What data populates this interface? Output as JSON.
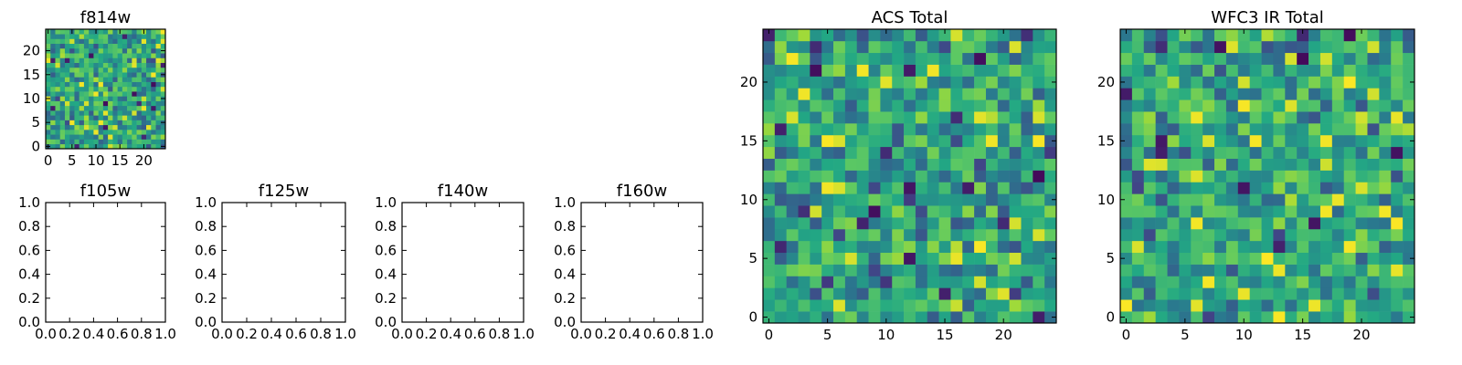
{
  "colors": {
    "background": "#ffffff",
    "axes": "#000000",
    "colormap": "viridis"
  },
  "chart_data": [
    {
      "type": "heatmap",
      "title": "f814w",
      "shape": [
        25,
        25
      ],
      "xlim": [
        -0.5,
        24.5
      ],
      "ylim": [
        -0.5,
        24.5
      ],
      "xticks": [
        0,
        5,
        10,
        15,
        20
      ],
      "xticklabels": [
        "0",
        "5",
        "10",
        "15",
        "20"
      ],
      "yticks": [
        0,
        5,
        10,
        15,
        20
      ],
      "yticklabels": [
        "0",
        "5",
        "10",
        "15",
        "20"
      ],
      "seed": 814
    },
    {
      "type": "heatmap",
      "title": "f105w",
      "empty": true,
      "xlim": [
        0,
        1
      ],
      "ylim": [
        0,
        1
      ],
      "xticks": [
        0,
        0.2,
        0.4,
        0.6,
        0.8,
        1.0
      ],
      "xticklabels": [
        "0.0",
        "0.2",
        "0.4",
        "0.6",
        "0.8",
        "1.0"
      ],
      "yticks": [
        0,
        0.2,
        0.4,
        0.6,
        0.8,
        1.0
      ],
      "yticklabels": [
        "0.0",
        "0.2",
        "0.4",
        "0.6",
        "0.8",
        "1.0"
      ]
    },
    {
      "type": "heatmap",
      "title": "f125w",
      "empty": true,
      "xlim": [
        0,
        1
      ],
      "ylim": [
        0,
        1
      ],
      "xticks": [
        0,
        0.2,
        0.4,
        0.6,
        0.8,
        1.0
      ],
      "xticklabels": [
        "0.0",
        "0.2",
        "0.4",
        "0.6",
        "0.8",
        "1.0"
      ],
      "yticks": [
        0,
        0.2,
        0.4,
        0.6,
        0.8,
        1.0
      ],
      "yticklabels": [
        "0.0",
        "0.2",
        "0.4",
        "0.6",
        "0.8",
        "1.0"
      ]
    },
    {
      "type": "heatmap",
      "title": "f140w",
      "empty": true,
      "xlim": [
        0,
        1
      ],
      "ylim": [
        0,
        1
      ],
      "xticks": [
        0,
        0.2,
        0.4,
        0.6,
        0.8,
        1.0
      ],
      "xticklabels": [
        "0.0",
        "0.2",
        "0.4",
        "0.6",
        "0.8",
        "1.0"
      ],
      "yticks": [
        0,
        0.2,
        0.4,
        0.6,
        0.8,
        1.0
      ],
      "yticklabels": [
        "0.0",
        "0.2",
        "0.4",
        "0.6",
        "0.8",
        "1.0"
      ]
    },
    {
      "type": "heatmap",
      "title": "f160w",
      "empty": true,
      "xlim": [
        0,
        1
      ],
      "ylim": [
        0,
        1
      ],
      "xticks": [
        0,
        0.2,
        0.4,
        0.6,
        0.8,
        1.0
      ],
      "xticklabels": [
        "0.0",
        "0.2",
        "0.4",
        "0.6",
        "0.8",
        "1.0"
      ],
      "yticks": [
        0,
        0.2,
        0.4,
        0.6,
        0.8,
        1.0
      ],
      "yticklabels": [
        "0.0",
        "0.2",
        "0.4",
        "0.6",
        "0.8",
        "1.0"
      ]
    },
    {
      "type": "heatmap",
      "title": "ACS Total",
      "shape": [
        25,
        25
      ],
      "xlim": [
        -0.5,
        24.5
      ],
      "ylim": [
        -0.5,
        24.5
      ],
      "xticks": [
        0,
        5,
        10,
        15,
        20
      ],
      "xticklabels": [
        "0",
        "5",
        "10",
        "15",
        "20"
      ],
      "yticks": [
        0,
        5,
        10,
        15,
        20
      ],
      "yticklabels": [
        "0",
        "5",
        "10",
        "15",
        "20"
      ],
      "seed": 1234
    },
    {
      "type": "heatmap",
      "title": "WFC3 IR Total",
      "shape": [
        25,
        25
      ],
      "xlim": [
        -0.5,
        24.5
      ],
      "ylim": [
        -0.5,
        24.5
      ],
      "xticks": [
        0,
        5,
        10,
        15,
        20
      ],
      "xticklabels": [
        "0",
        "5",
        "10",
        "15",
        "20"
      ],
      "yticks": [
        0,
        5,
        10,
        15,
        20
      ],
      "yticklabels": [
        "0",
        "5",
        "10",
        "15",
        "20"
      ],
      "seed": 3000
    }
  ]
}
